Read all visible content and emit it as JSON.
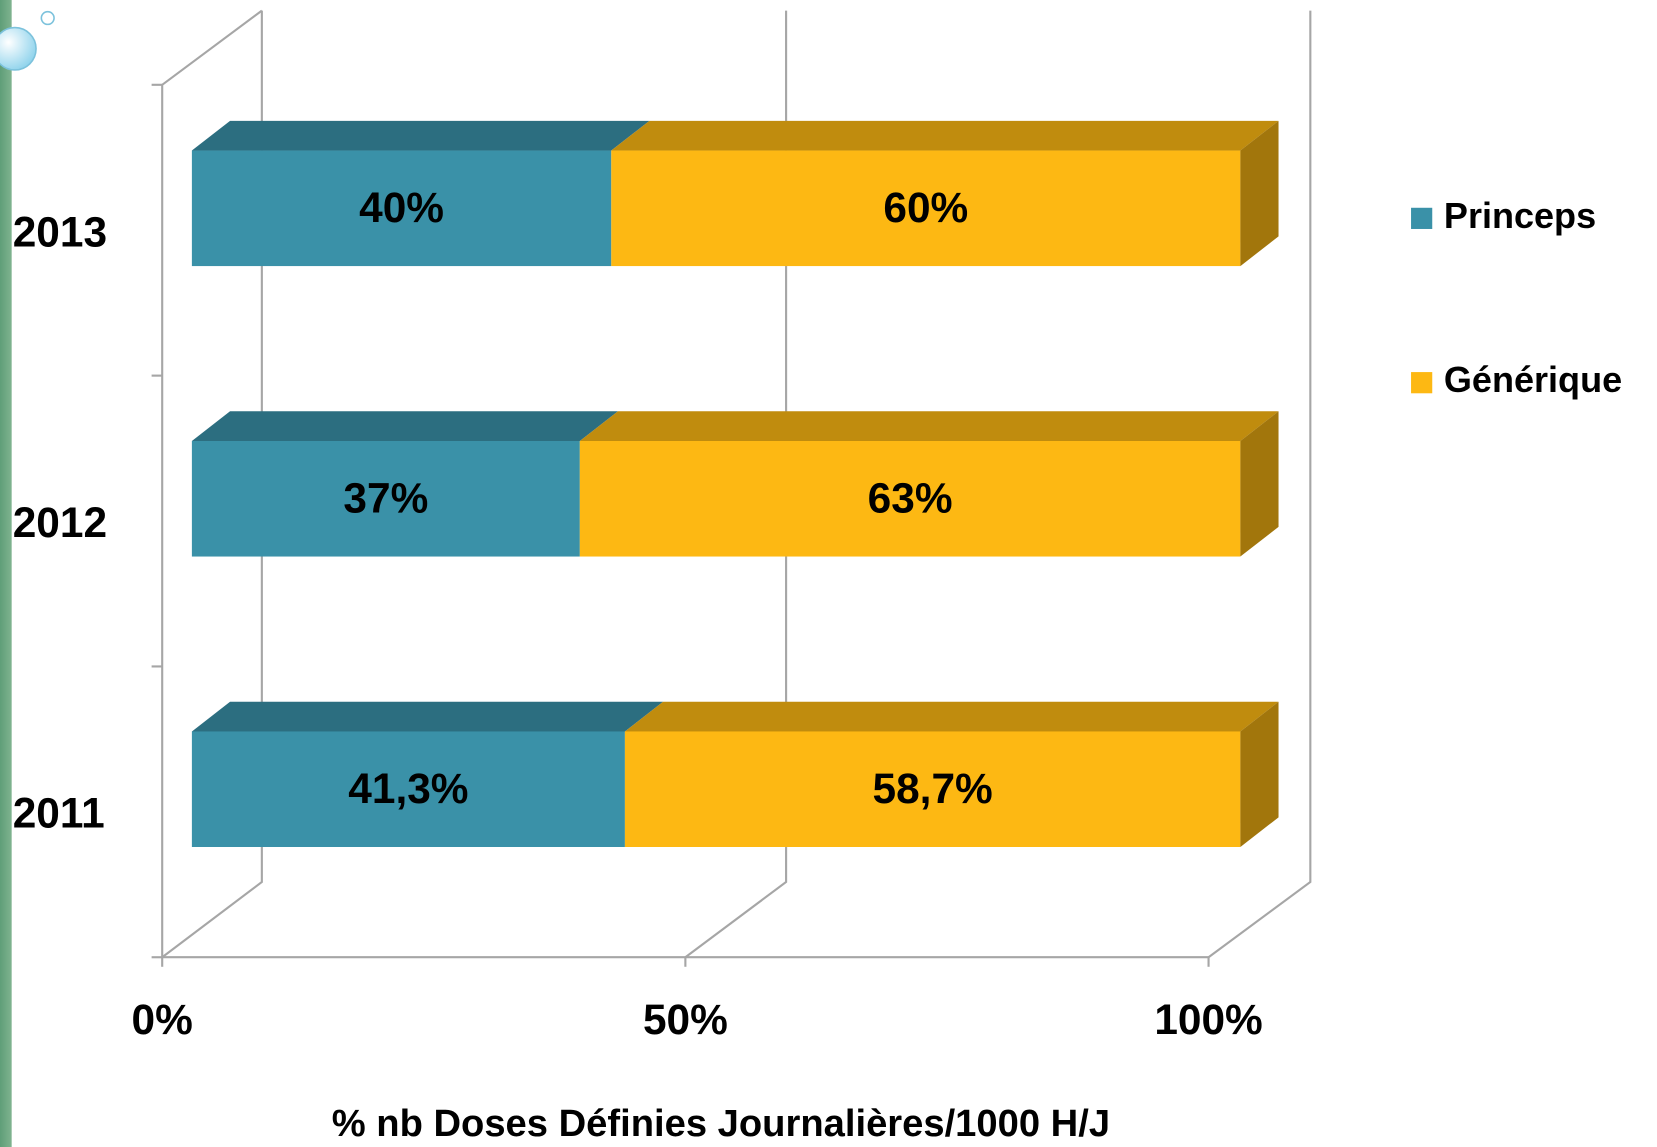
{
  "chart_data": {
    "type": "bar3d",
    "orientation": "horizontal",
    "stacked": true,
    "categories": [
      "2011",
      "2012",
      "2013"
    ],
    "series": [
      {
        "name": "Princeps",
        "color": "#3a91a8",
        "values": [
          41.3,
          37,
          40
        ],
        "value_labels": [
          "41,3%",
          "37%",
          "40%"
        ]
      },
      {
        "name": "Générique",
        "color": "#fdb813",
        "values": [
          58.7,
          63,
          60
        ],
        "value_labels": [
          "58,7%",
          "63%",
          "60%"
        ]
      }
    ],
    "xlim": [
      0,
      100
    ],
    "xticks": [
      {
        "value": 0,
        "label": "0%"
      },
      {
        "value": 50,
        "label": "50%"
      },
      {
        "value": 100,
        "label": "100%"
      }
    ],
    "xlabel": "% nb Doses Définies Journalières/1000 H/J",
    "grid": true,
    "legend": "right"
  }
}
